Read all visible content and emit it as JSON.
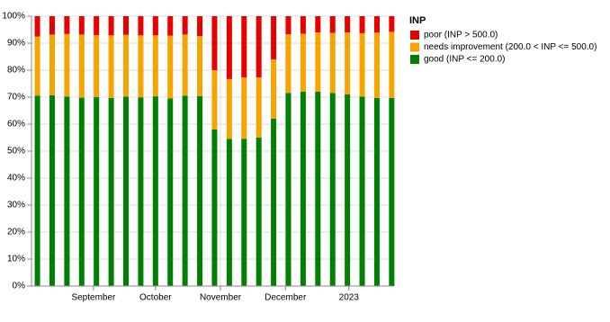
{
  "chart_data": {
    "type": "stacked_bar",
    "categories": [
      null,
      null,
      null,
      null,
      null,
      null,
      null,
      null,
      null,
      null,
      null,
      null,
      null,
      null,
      null,
      null,
      null,
      null,
      null,
      null,
      null,
      null,
      null,
      null,
      null
    ],
    "legend_title": "INP",
    "legend_position": "right",
    "grid": true,
    "series": [
      {
        "name": "poor (INP > 500.0)",
        "color": "#e60000",
        "values": [
          7.5,
          6.8,
          6.6,
          6.8,
          7,
          7.1,
          6.9,
          7.1,
          7.1,
          7.2,
          6.8,
          7.4,
          20,
          23.3,
          22.7,
          22.7,
          16,
          6.7,
          6.5,
          6,
          6.2,
          6,
          6.3,
          6.1,
          5.8
        ]
      },
      {
        "name": "needs improvement (200.0 < INP <= 500.0)",
        "color": "#f5a400",
        "values": [
          22,
          22.5,
          23.2,
          23.4,
          23,
          23.2,
          22.9,
          23,
          22.6,
          23.3,
          22.7,
          22.2,
          22,
          22.2,
          22.7,
          22.3,
          22,
          21.8,
          21.5,
          22,
          22.3,
          23,
          23.5,
          24.2,
          24.5
        ]
      },
      {
        "name": "good (INP <= 200.0)",
        "color": "#008000",
        "values": [
          70.5,
          70.7,
          70.2,
          69.8,
          70,
          69.7,
          70.2,
          69.9,
          70.3,
          69.5,
          70.5,
          70.4,
          58,
          54.5,
          54.6,
          55,
          62,
          71.5,
          72,
          72,
          71.5,
          71,
          70.2,
          69.7,
          69.7
        ]
      }
    ],
    "xlim": [
      -0.4,
      24.1
    ],
    "xticks": [
      {
        "value": 3.8,
        "label": "September"
      },
      {
        "value": 8.0,
        "label": "October"
      },
      {
        "value": 12.4,
        "label": "November"
      },
      {
        "value": 16.8,
        "label": "December"
      },
      {
        "value": 21.1,
        "label": "2023"
      }
    ],
    "ylim": [
      0,
      100
    ],
    "yticks": [
      {
        "value": 0,
        "label": "0%"
      },
      {
        "value": 10,
        "label": "10%"
      },
      {
        "value": 20,
        "label": "20%"
      },
      {
        "value": 30,
        "label": "30%"
      },
      {
        "value": 40,
        "label": "40%"
      },
      {
        "value": 50,
        "label": "50%"
      },
      {
        "value": 60,
        "label": "60%"
      },
      {
        "value": 70,
        "label": "70%"
      },
      {
        "value": 80,
        "label": "80%"
      },
      {
        "value": 90,
        "label": "90%"
      },
      {
        "value": 100,
        "label": "100%"
      }
    ]
  }
}
